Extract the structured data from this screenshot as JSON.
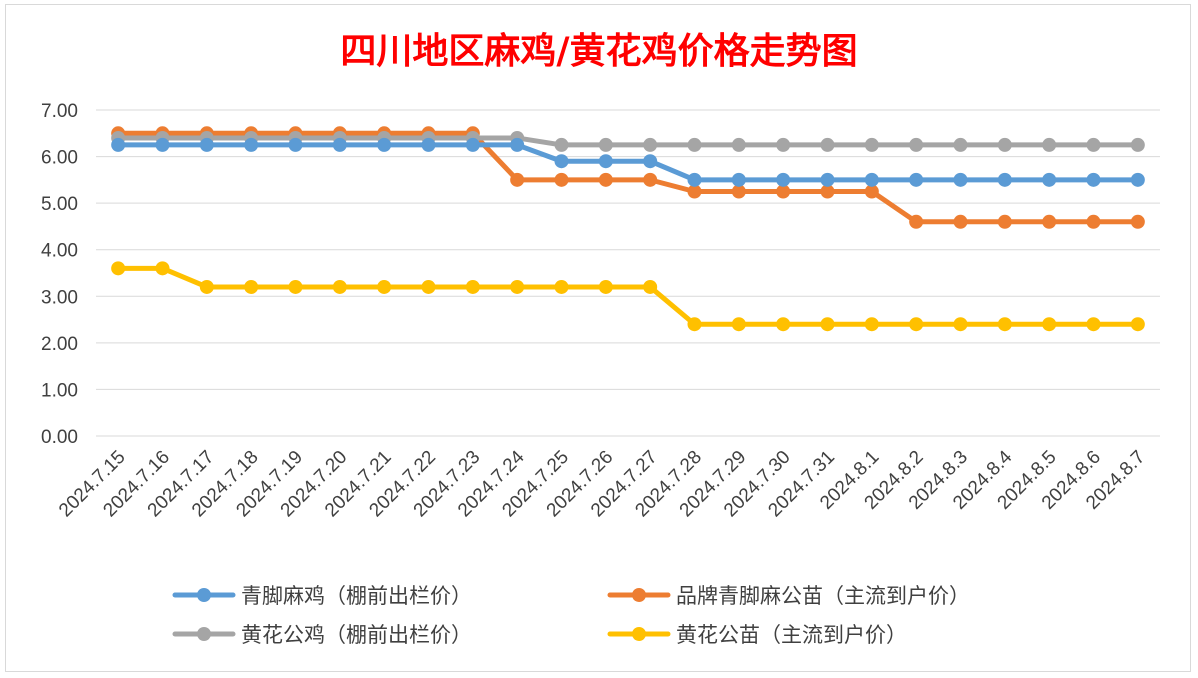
{
  "chart_data": {
    "type": "line",
    "title": "四川地区麻鸡/黄花鸡价格走势图",
    "x": [
      "2024.7.15",
      "2024.7.16",
      "2024.7.17",
      "2024.7.18",
      "2024.7.19",
      "2024.7.20",
      "2024.7.21",
      "2024.7.22",
      "2024.7.23",
      "2024.7.24",
      "2024.7.25",
      "2024.7.26",
      "2024.7.27",
      "2024.7.28",
      "2024.7.29",
      "2024.7.30",
      "2024.7.31",
      "2024.8.1",
      "2024.8.2",
      "2024.8.3",
      "2024.8.4",
      "2024.8.5",
      "2024.8.6",
      "2024.8.7"
    ],
    "ylim": [
      0,
      7
    ],
    "yticks": [
      "0.00",
      "1.00",
      "2.00",
      "3.00",
      "4.00",
      "5.00",
      "6.00",
      "7.00"
    ],
    "grid": true,
    "legend_position": "bottom",
    "series": [
      {
        "name": "青脚麻鸡（棚前出栏价）",
        "color": "#5b9bd5",
        "values": [
          6.25,
          6.25,
          6.25,
          6.25,
          6.25,
          6.25,
          6.25,
          6.25,
          6.25,
          6.25,
          5.9,
          5.9,
          5.9,
          5.5,
          5.5,
          5.5,
          5.5,
          5.5,
          5.5,
          5.5,
          5.5,
          5.5,
          5.5,
          5.5
        ]
      },
      {
        "name": "品牌青脚麻公苗（主流到户价）",
        "color": "#ed7d31",
        "values": [
          6.5,
          6.5,
          6.5,
          6.5,
          6.5,
          6.5,
          6.5,
          6.5,
          6.5,
          5.5,
          5.5,
          5.5,
          5.5,
          5.25,
          5.25,
          5.25,
          5.25,
          5.25,
          4.6,
          4.6,
          4.6,
          4.6,
          4.6,
          4.6
        ]
      },
      {
        "name": "黄花公鸡（棚前出栏价）",
        "color": "#a5a5a5",
        "values": [
          6.4,
          6.4,
          6.4,
          6.4,
          6.4,
          6.4,
          6.4,
          6.4,
          6.4,
          6.4,
          6.25,
          6.25,
          6.25,
          6.25,
          6.25,
          6.25,
          6.25,
          6.25,
          6.25,
          6.25,
          6.25,
          6.25,
          6.25,
          6.25
        ]
      },
      {
        "name": "黄花公苗（主流到户价）",
        "color": "#ffc000",
        "values": [
          3.6,
          3.6,
          3.2,
          3.2,
          3.2,
          3.2,
          3.2,
          3.2,
          3.2,
          3.2,
          3.2,
          3.2,
          3.2,
          2.4,
          2.4,
          2.4,
          2.4,
          2.4,
          2.4,
          2.4,
          2.4,
          2.4,
          2.4,
          2.4
        ]
      }
    ]
  }
}
